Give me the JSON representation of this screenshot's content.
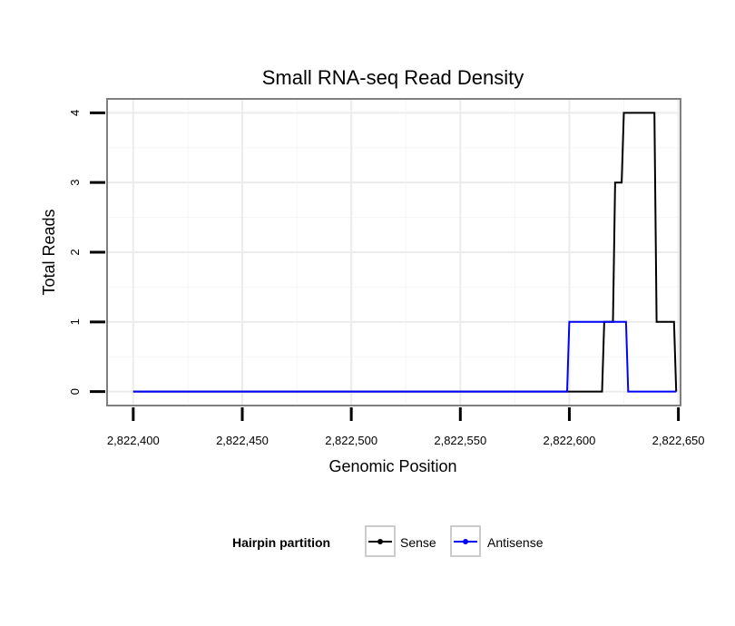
{
  "chart_data": {
    "type": "line",
    "step": true,
    "title": "Small RNA-seq Read Density",
    "xlabel": "Genomic Position",
    "ylabel": "Total Reads",
    "xlim": [
      2822388,
      2822651
    ],
    "ylim": [
      -0.2,
      4.2
    ],
    "grid": true,
    "x_ticks": [
      2822400,
      2822450,
      2822500,
      2822550,
      2822600,
      2822650
    ],
    "x_tick_labels": [
      "2,822,400",
      "2,822,450",
      "2,822,500",
      "2,822,550",
      "2,822,600",
      "2,822,650"
    ],
    "y_ticks": [
      0,
      1,
      2,
      3,
      4
    ],
    "y_tick_labels": [
      "0",
      "1",
      "2",
      "3",
      "4"
    ],
    "series": [
      {
        "name": "Sense",
        "color": "#000000",
        "x": [
          2822400,
          2822615,
          2822616,
          2822620,
          2822621,
          2822624,
          2822625,
          2822639,
          2822640,
          2822648,
          2822649
        ],
        "values": [
          0,
          0,
          1,
          1,
          3,
          3,
          4,
          4,
          1,
          1,
          0
        ]
      },
      {
        "name": "Antisense",
        "color": "#0000ff",
        "x": [
          2822400,
          2822599,
          2822600,
          2822626,
          2822627,
          2822649
        ],
        "values": [
          0,
          0,
          1,
          1,
          0,
          0
        ]
      }
    ],
    "legend": {
      "title": "Hairpin partition",
      "position": "bottom",
      "entries": [
        "Sense",
        "Antisense"
      ]
    }
  }
}
